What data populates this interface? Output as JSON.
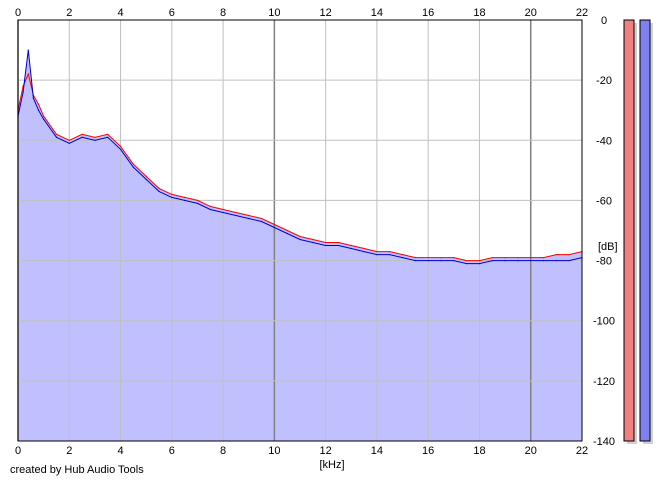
{
  "chart_data": {
    "type": "area",
    "title": "",
    "xlabel": "[kHz]",
    "ylabel": "[dB]",
    "xlim": [
      0,
      22
    ],
    "ylim": [
      -140,
      0
    ],
    "x_ticks": [
      0,
      2,
      4,
      6,
      8,
      10,
      12,
      14,
      16,
      18,
      20,
      22
    ],
    "y_ticks": [
      0,
      -20,
      -40,
      -60,
      -80,
      -100,
      -120,
      -140
    ],
    "x_tick_labels": [
      "0",
      "2",
      "4",
      "6",
      "8",
      "10",
      "12",
      "14",
      "16",
      "18",
      "20",
      "22"
    ],
    "y_tick_labels": [
      "0",
      "-20",
      "-40",
      "-60",
      "-80",
      "-100",
      "-120",
      "-140"
    ],
    "grid": true,
    "series": [
      {
        "color": "#ff0000",
        "x": [
          0,
          0.2,
          0.4,
          0.6,
          0.8,
          1,
          1.5,
          2,
          2.5,
          3,
          3.5,
          4,
          4.5,
          5,
          5.5,
          6,
          6.5,
          7,
          7.5,
          8,
          8.5,
          9,
          9.5,
          10,
          10.5,
          11,
          11.5,
          12,
          12.5,
          13,
          13.5,
          14,
          14.5,
          15,
          15.5,
          16,
          16.5,
          17,
          17.5,
          18,
          18.5,
          19,
          19.5,
          20,
          20.5,
          21,
          21.5,
          22
        ],
        "y": [
          -30,
          -22,
          -18,
          -25,
          -28,
          -32,
          -38,
          -40,
          -38,
          -39,
          -38,
          -42,
          -48,
          -52,
          -56,
          -58,
          -59,
          -60,
          -62,
          -63,
          -64,
          -65,
          -66,
          -68,
          -70,
          -72,
          -73,
          -74,
          -74,
          -75,
          -76,
          -77,
          -77,
          -78,
          -79,
          -79,
          -79,
          -79,
          -80,
          -80,
          -79,
          -79,
          -79,
          -79,
          -79,
          -78,
          -78,
          -77
        ]
      },
      {
        "color": "#0000cc",
        "x": [
          0,
          0.2,
          0.4,
          0.6,
          0.8,
          1,
          1.5,
          2,
          2.5,
          3,
          3.5,
          4,
          4.5,
          5,
          5.5,
          6,
          6.5,
          7,
          7.5,
          8,
          8.5,
          9,
          9.5,
          10,
          10.5,
          11,
          11.5,
          12,
          12.5,
          13,
          13.5,
          14,
          14.5,
          15,
          15.5,
          16,
          16.5,
          17,
          17.5,
          18,
          18.5,
          19,
          19.5,
          20,
          20.5,
          21,
          21.5,
          22
        ],
        "y": [
          -32,
          -24,
          -10,
          -26,
          -30,
          -33,
          -39,
          -41,
          -39,
          -40,
          -39,
          -43,
          -49,
          -53,
          -57,
          -59,
          -60,
          -61,
          -63,
          -64,
          -65,
          -66,
          -67,
          -69,
          -71,
          -73,
          -74,
          -75,
          -75,
          -76,
          -77,
          -78,
          -78,
          -79,
          -80,
          -80,
          -80,
          -80,
          -81,
          -81,
          -80,
          -80,
          -80,
          -80,
          -80,
          -80,
          -80,
          -79
        ]
      }
    ],
    "level_meters": [
      {
        "color": "#f08080",
        "level": -140
      },
      {
        "color": "#8080f0",
        "level": -140
      }
    ]
  },
  "footer": {
    "credit": "created by Hub Audio Tools"
  },
  "colors": {
    "fill": "#c0c0ff",
    "grid_minor": "#c0c0c0",
    "grid_major": "#808080",
    "frame": "#000000"
  }
}
